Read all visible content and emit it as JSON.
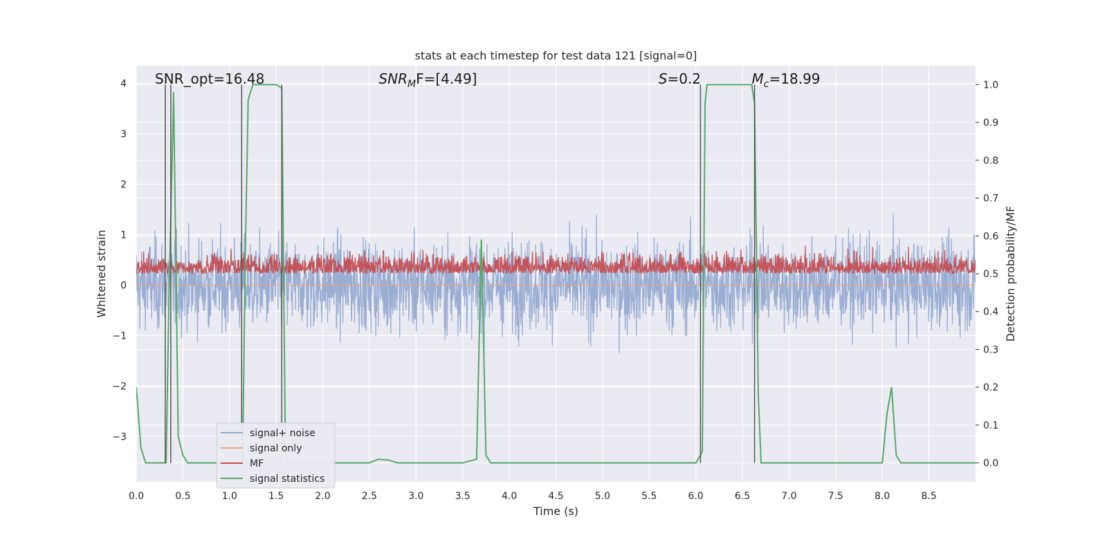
{
  "chart_data": {
    "type": "line",
    "title": "stats at each timestep for test data 121 [signal=0]",
    "xlabel": "Time (s)",
    "ylabel": "Whitened strain",
    "y2label": "Detection probability/MF",
    "xlim": [
      0.0,
      9.0
    ],
    "ylim": [
      -3.9,
      4.35
    ],
    "y2lim": [
      -0.05,
      1.05
    ],
    "xticks": [
      "0.0",
      "0.5",
      "1.0",
      "1.5",
      "2.0",
      "2.5",
      "3.0",
      "3.5",
      "4.0",
      "4.5",
      "5.0",
      "5.5",
      "6.0",
      "6.5",
      "7.0",
      "7.5",
      "8.0",
      "8.5"
    ],
    "yticks": [
      "−3",
      "−2",
      "−1",
      "0",
      "1",
      "2",
      "3",
      "4"
    ],
    "y2ticks": [
      "0.0",
      "0.1",
      "0.2",
      "0.3",
      "0.4",
      "0.5",
      "0.6",
      "0.7",
      "0.8",
      "0.9",
      "1.0"
    ],
    "grid": true,
    "legend_position": "lower-left",
    "annotations": [
      {
        "text": "SNR_opt=16.48",
        "x": 0.2
      },
      {
        "text": "SNR",
        "sub": "M",
        "rest": "F=[4.49]",
        "italic": true,
        "x": 2.6
      },
      {
        "text": "S",
        "rest": "=0.2",
        "italic": true,
        "x": 5.6
      },
      {
        "text": "M",
        "sub": "c",
        "rest": "=18.99",
        "italic": true,
        "x": 6.6
      }
    ],
    "vlines": [
      0.31,
      0.37,
      1.13,
      1.56,
      6.05,
      6.63
    ],
    "series": [
      {
        "name": "signal+ noise",
        "color": "#91a7cf",
        "kind": "noise",
        "center": 0.0,
        "amplitude": 1.4
      },
      {
        "name": "signal only",
        "color": "#e8a486",
        "kind": "flat",
        "value": 0.0
      },
      {
        "name": "MF",
        "color": "#c44e52",
        "kind": "noise",
        "axis": "y2",
        "center": 0.51,
        "amplitude": 0.06
      },
      {
        "name": "signal statistics",
        "color": "#55a868",
        "axis": "y2",
        "x": [
          0.0,
          0.05,
          0.1,
          0.15,
          0.2,
          0.25,
          0.3,
          0.32,
          0.35,
          0.4,
          0.45,
          0.5,
          0.55,
          0.6,
          0.7,
          0.8,
          0.9,
          1.0,
          1.05,
          1.1,
          1.14,
          1.17,
          1.2,
          1.25,
          1.3,
          1.35,
          1.4,
          1.45,
          1.5,
          1.56,
          1.58,
          1.6,
          1.65,
          1.7,
          1.75,
          1.8,
          1.9,
          2.0,
          2.2,
          2.4,
          2.5,
          2.6,
          2.65,
          2.7,
          2.8,
          2.9,
          3.0,
          3.5,
          3.65,
          3.7,
          3.75,
          3.8,
          3.85,
          3.9,
          4.0,
          4.5,
          5.0,
          5.5,
          6.0,
          6.05,
          6.07,
          6.1,
          6.12,
          6.2,
          6.3,
          6.5,
          6.6,
          6.63,
          6.67,
          6.7,
          7.0,
          7.5,
          8.0,
          8.05,
          8.1,
          8.15,
          8.2,
          8.3,
          8.5,
          8.8,
          9.0
        ],
        "values": [
          0.2,
          0.04,
          0.0,
          0.0,
          0.0,
          0.0,
          0.0,
          0.0,
          0.43,
          0.98,
          0.07,
          0.02,
          0.0,
          0.0,
          0.0,
          0.0,
          0.0,
          0.0,
          0.0,
          0.0,
          0.0,
          0.57,
          0.96,
          1.0,
          1.0,
          1.0,
          1.0,
          1.0,
          1.0,
          0.99,
          0.5,
          0.02,
          0.0,
          0.0,
          0.0,
          0.0,
          0.0,
          0.0,
          0.0,
          0.0,
          0.0,
          0.01,
          0.008,
          0.008,
          0.0,
          0.0,
          0.0,
          0.0,
          0.01,
          0.59,
          0.02,
          0.0,
          0.0,
          0.0,
          0.0,
          0.0,
          0.0,
          0.0,
          0.0,
          0.02,
          0.03,
          0.95,
          1.0,
          1.0,
          1.0,
          1.0,
          1.0,
          0.95,
          0.18,
          0.0,
          0.0,
          0.0,
          0.0,
          0.13,
          0.2,
          0.02,
          0.0,
          0.0,
          0.0,
          0.0,
          0.0
        ]
      }
    ]
  }
}
